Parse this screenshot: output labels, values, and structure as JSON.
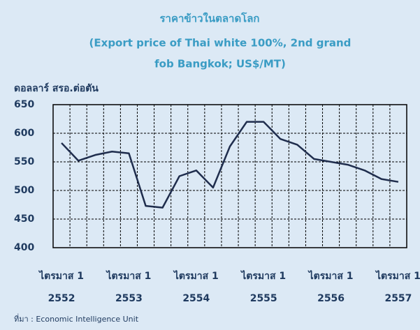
{
  "chart_data": {
    "type": "line",
    "title": "ราคาข้าวในตลาดโลก",
    "subtitle": [
      "(Export price of Thai white 100%, 2nd  grand",
      "fob Bangkok; US$/MT)"
    ],
    "y_label": "ดอลลาร์ สรอ.ต่อตัน",
    "source": "ที่มา : Economic Intelligence Unit",
    "categories": [
      [
        "ไตรมาส 1",
        "2552"
      ],
      null,
      null,
      null,
      [
        "ไตรมาส 1",
        "2553"
      ],
      null,
      null,
      null,
      [
        "ไตรมาส 1",
        "2554"
      ],
      null,
      null,
      null,
      [
        "ไตรมาส 1",
        "2555"
      ],
      null,
      null,
      null,
      [
        "ไตรมาส 1",
        "2556"
      ],
      null,
      null,
      null,
      [
        "ไตรมาส 1",
        "2557"
      ]
    ],
    "series": [
      {
        "name": "Export price",
        "color": "#1f2d4d",
        "values": [
          583,
          552,
          562,
          568,
          565,
          473,
          470,
          525,
          535,
          505,
          577,
          620,
          620,
          590,
          580,
          555,
          550,
          545,
          535,
          520,
          515
        ]
      }
    ],
    "ylim": [
      400,
      650
    ],
    "yticks": [
      400,
      450,
      500,
      550,
      600,
      650
    ],
    "grid": true
  }
}
